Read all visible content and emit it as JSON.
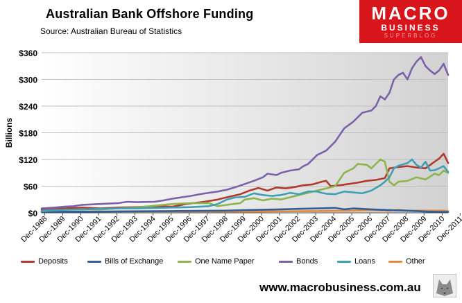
{
  "header": {
    "title": "Australian  Bank Offshore Funding",
    "source": "Source:   Australian Bureau of Statistics"
  },
  "logo": {
    "line1": "MACRO",
    "line2": "BUSINESS",
    "line3": "SUPERBLOG"
  },
  "footer": {
    "url": "www.macrobusiness.com.au"
  },
  "chart_data": {
    "type": "line",
    "title": "Australian  Bank Offshore Funding",
    "ylabel": "Billions",
    "xlabel": "",
    "ylim": [
      0,
      360
    ],
    "yticks": [
      0,
      60,
      120,
      180,
      240,
      300,
      360
    ],
    "ytick_labels": [
      "$0",
      "$60",
      "$120",
      "$180",
      "$240",
      "$300",
      "$360"
    ],
    "x_tick_labels": [
      "Dec-1988",
      "Dec-1989",
      "Dec-1990",
      "Dec-1991",
      "Dec-1992",
      "Dec-1993",
      "Dec-1994",
      "Dec-1995",
      "Dec-1996",
      "Dec-1997",
      "Dec-1998",
      "Dec-1999",
      "Dec-2000",
      "Dec-2001",
      "Dec-2002",
      "Dec-2003",
      "Dec-2004",
      "Dec-2005",
      "Dec-2006",
      "Dec-2007",
      "Dec-2008",
      "Dec-2009",
      "Dec-2010",
      "Dec-2011"
    ],
    "grid": true,
    "legend_position": "bottom",
    "series": [
      {
        "name": "Deposits",
        "color": "#b03a2e",
        "points": [
          [
            1988.75,
            7
          ],
          [
            1990,
            10
          ],
          [
            1991,
            12
          ],
          [
            1992,
            10
          ],
          [
            1993,
            12
          ],
          [
            1994,
            13
          ],
          [
            1995,
            15
          ],
          [
            1996,
            14
          ],
          [
            1996.75,
            20
          ],
          [
            1997.75,
            25
          ],
          [
            1998.5,
            30
          ],
          [
            1999,
            35
          ],
          [
            1999.75,
            42
          ],
          [
            2000.25,
            50
          ],
          [
            2000.75,
            56
          ],
          [
            2001.25,
            50
          ],
          [
            2001.75,
            57
          ],
          [
            2002.25,
            55
          ],
          [
            2002.75,
            58
          ],
          [
            2003.25,
            62
          ],
          [
            2003.75,
            64
          ],
          [
            2004.25,
            70
          ],
          [
            2004.5,
            72
          ],
          [
            2004.75,
            60
          ],
          [
            2005.25,
            62
          ],
          [
            2005.75,
            65
          ],
          [
            2006.25,
            68
          ],
          [
            2006.75,
            72
          ],
          [
            2007.25,
            74
          ],
          [
            2007.75,
            78
          ],
          [
            2008,
            100
          ],
          [
            2008.5,
            103
          ],
          [
            2009,
            105
          ],
          [
            2009.5,
            102
          ],
          [
            2010,
            100
          ],
          [
            2010.5,
            115
          ],
          [
            2010.75,
            122
          ],
          [
            2011,
            133
          ],
          [
            2011.25,
            112
          ]
        ]
      },
      {
        "name": "Bills of Exchange",
        "color": "#2f5d9a",
        "points": [
          [
            1988.75,
            2
          ],
          [
            1992,
            3
          ],
          [
            1996,
            4
          ],
          [
            1999,
            5
          ],
          [
            2000,
            6
          ],
          [
            2002,
            8
          ],
          [
            2003,
            9
          ],
          [
            2004,
            10
          ],
          [
            2005,
            11
          ],
          [
            2005.5,
            8
          ],
          [
            2006,
            10
          ],
          [
            2007,
            8
          ],
          [
            2008,
            6
          ],
          [
            2009,
            5
          ],
          [
            2010,
            3
          ],
          [
            2011,
            2
          ],
          [
            2011.25,
            2
          ]
        ]
      },
      {
        "name": "One Name Paper",
        "color": "#8db44e",
        "points": [
          [
            1988.75,
            4
          ],
          [
            1990,
            7
          ],
          [
            1991,
            8
          ],
          [
            1992,
            8
          ],
          [
            1993,
            10
          ],
          [
            1994,
            12
          ],
          [
            1995,
            16
          ],
          [
            1996,
            20
          ],
          [
            1997,
            22
          ],
          [
            1998,
            22
          ],
          [
            1998.5,
            15
          ],
          [
            1999,
            18
          ],
          [
            1999.75,
            22
          ],
          [
            2000,
            30
          ],
          [
            2000.5,
            33
          ],
          [
            2001,
            28
          ],
          [
            2001.5,
            32
          ],
          [
            2002,
            30
          ],
          [
            2002.5,
            35
          ],
          [
            2003,
            40
          ],
          [
            2003.5,
            45
          ],
          [
            2004,
            50
          ],
          [
            2004.5,
            55
          ],
          [
            2005,
            60
          ],
          [
            2005.5,
            90
          ],
          [
            2006,
            100
          ],
          [
            2006.25,
            110
          ],
          [
            2006.75,
            108
          ],
          [
            2007,
            100
          ],
          [
            2007.5,
            120
          ],
          [
            2007.75,
            115
          ],
          [
            2008,
            70
          ],
          [
            2008.25,
            62
          ],
          [
            2008.5,
            70
          ],
          [
            2009,
            72
          ],
          [
            2009.5,
            80
          ],
          [
            2010,
            75
          ],
          [
            2010.5,
            88
          ],
          [
            2010.75,
            85
          ],
          [
            2011,
            95
          ],
          [
            2011.25,
            90
          ]
        ]
      },
      {
        "name": "Bonds",
        "color": "#7b61a8",
        "points": [
          [
            1988.75,
            10
          ],
          [
            1989.5,
            12
          ],
          [
            1990,
            14
          ],
          [
            1990.5,
            15
          ],
          [
            1991,
            18
          ],
          [
            1992,
            20
          ],
          [
            1993,
            22
          ],
          [
            1993.5,
            25
          ],
          [
            1994,
            24
          ],
          [
            1995,
            25
          ],
          [
            1995.5,
            28
          ],
          [
            1996,
            32
          ],
          [
            1996.5,
            35
          ],
          [
            1997,
            38
          ],
          [
            1997.5,
            42
          ],
          [
            1998,
            45
          ],
          [
            1998.5,
            48
          ],
          [
            1999,
            52
          ],
          [
            1999.5,
            58
          ],
          [
            2000,
            65
          ],
          [
            2000.5,
            72
          ],
          [
            2001,
            80
          ],
          [
            2001.25,
            88
          ],
          [
            2001.75,
            85
          ],
          [
            2002,
            90
          ],
          [
            2002.5,
            95
          ],
          [
            2003,
            98
          ],
          [
            2003.25,
            105
          ],
          [
            2003.5,
            110
          ],
          [
            2004,
            130
          ],
          [
            2004.5,
            140
          ],
          [
            2004.75,
            150
          ],
          [
            2005,
            160
          ],
          [
            2005.25,
            175
          ],
          [
            2005.5,
            190
          ],
          [
            2006,
            205
          ],
          [
            2006.5,
            225
          ],
          [
            2007,
            230
          ],
          [
            2007.25,
            240
          ],
          [
            2007.5,
            262
          ],
          [
            2007.75,
            255
          ],
          [
            2008,
            270
          ],
          [
            2008.25,
            300
          ],
          [
            2008.5,
            310
          ],
          [
            2008.75,
            315
          ],
          [
            2009,
            300
          ],
          [
            2009.25,
            325
          ],
          [
            2009.5,
            340
          ],
          [
            2009.75,
            350
          ],
          [
            2010,
            330
          ],
          [
            2010.25,
            320
          ],
          [
            2010.5,
            312
          ],
          [
            2010.75,
            320
          ],
          [
            2011,
            335
          ],
          [
            2011.25,
            310
          ]
        ]
      },
      {
        "name": "Loans",
        "color": "#3f9fb4",
        "points": [
          [
            1988.75,
            5
          ],
          [
            1990,
            7
          ],
          [
            1991,
            8
          ],
          [
            1992,
            9
          ],
          [
            1993,
            10
          ],
          [
            1994,
            10
          ],
          [
            1995,
            11
          ],
          [
            1996,
            12
          ],
          [
            1997,
            13
          ],
          [
            1998,
            15
          ],
          [
            1998.5,
            20
          ],
          [
            1999,
            30
          ],
          [
            1999.5,
            35
          ],
          [
            2000,
            36
          ],
          [
            2000.5,
            44
          ],
          [
            2001,
            40
          ],
          [
            2001.5,
            38
          ],
          [
            2002,
            40
          ],
          [
            2002.5,
            45
          ],
          [
            2003,
            42
          ],
          [
            2003.5,
            48
          ],
          [
            2004,
            48
          ],
          [
            2004.25,
            45
          ],
          [
            2004.5,
            43
          ],
          [
            2005,
            42
          ],
          [
            2005.5,
            48
          ],
          [
            2006,
            46
          ],
          [
            2006.5,
            44
          ],
          [
            2007,
            50
          ],
          [
            2007.5,
            62
          ],
          [
            2007.75,
            70
          ],
          [
            2008,
            80
          ],
          [
            2008.25,
            100
          ],
          [
            2008.5,
            106
          ],
          [
            2009,
            112
          ],
          [
            2009.25,
            120
          ],
          [
            2009.5,
            108
          ],
          [
            2009.75,
            102
          ],
          [
            2010,
            115
          ],
          [
            2010.25,
            95
          ],
          [
            2010.5,
            96
          ],
          [
            2010.75,
            100
          ],
          [
            2011,
            105
          ],
          [
            2011.25,
            92
          ]
        ]
      },
      {
        "name": "Other",
        "color": "#e58a3c",
        "points": [
          [
            1988.75,
            3
          ],
          [
            1992,
            3
          ],
          [
            1996,
            3
          ],
          [
            2000,
            3
          ],
          [
            2004,
            4
          ],
          [
            2006,
            5
          ],
          [
            2007,
            6
          ],
          [
            2008,
            5
          ],
          [
            2008.5,
            7
          ],
          [
            2009,
            5
          ],
          [
            2010,
            5
          ],
          [
            2011,
            5
          ],
          [
            2011.25,
            4
          ]
        ]
      }
    ]
  }
}
